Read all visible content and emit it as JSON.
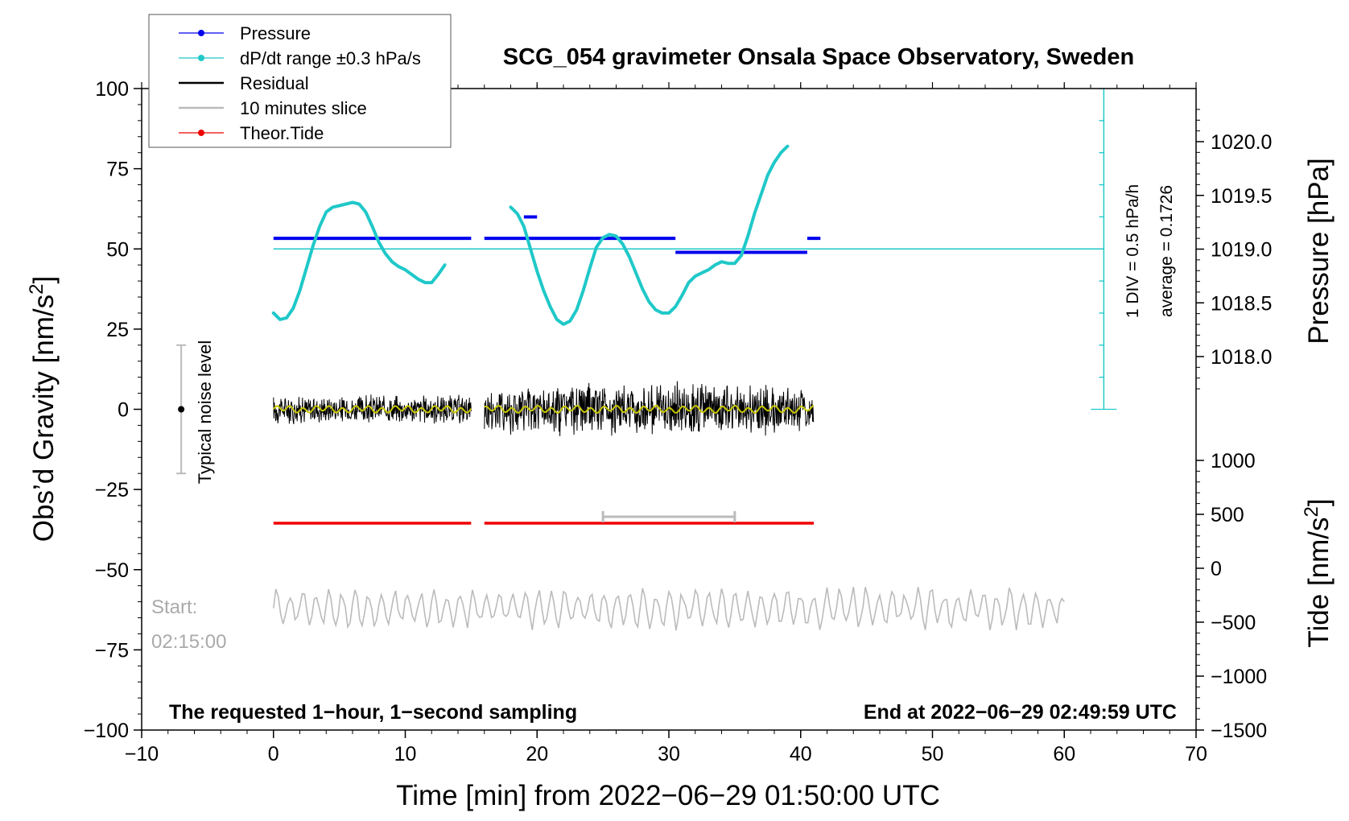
{
  "chart_data": {
    "type": "line",
    "title": "SCG_054 gravimeter Onsala Space Observatory, Sweden",
    "xlabel": "Time [min] from 2022−06−29 01:50:00 UTC",
    "ylabel_left": "Obs’d Gravity [nm/s",
    "ylabel_left_sup": "2",
    "ylabel_left_end": "]",
    "ylabel_right_pressure": "Pressure [hPa]",
    "ylabel_right_tide": "Tide [nm/s",
    "ylabel_right_tide_sup": "2",
    "ylabel_right_tide_end": "]",
    "xlim": [
      -10,
      70
    ],
    "ylim_left": [
      -100,
      100
    ],
    "x_ticks": [
      "−10",
      "0",
      "10",
      "20",
      "30",
      "40",
      "50",
      "60",
      "70"
    ],
    "x_tick_values": [
      -10,
      0,
      10,
      20,
      30,
      40,
      50,
      60,
      70
    ],
    "y_left_ticks": [
      "100",
      "75",
      "50",
      "25",
      "0",
      "−25",
      "−50",
      "−75",
      "−100"
    ],
    "y_left_tick_values": [
      100,
      75,
      50,
      25,
      0,
      -25,
      -50,
      -75,
      -100
    ],
    "pressure_axis": {
      "ticks": [
        "1020.0",
        "1019.5",
        "1019.0",
        "1018.5",
        "1018.0"
      ],
      "tick_values": [
        1020.0,
        1019.5,
        1019.0,
        1018.5,
        1018.0
      ],
      "range": [
        1017.5,
        1020.5
      ]
    },
    "tide_axis": {
      "ticks": [
        "1000",
        "500",
        "0",
        "−500",
        "−1000",
        "−1500"
      ],
      "tick_values": [
        1000,
        500,
        0,
        -500,
        -1000,
        -1500
      ],
      "range": [
        -1500,
        1000
      ]
    },
    "legend": {
      "position": "top-left",
      "entries": [
        {
          "label": "Pressure",
          "color": "#0000ee",
          "marker": true
        },
        {
          "label": "dP/dt range ±0.3 hPa/s",
          "color": "#20c8c8",
          "marker": true
        },
        {
          "label": "Residual",
          "color": "#000000",
          "marker": false
        },
        {
          "label": "10 minutes slice",
          "color": "#bbbbbb",
          "marker": false
        },
        {
          "label": "Theor.Tide",
          "color": "#ee0000",
          "marker": true
        }
      ]
    },
    "series": [
      {
        "name": "Pressure",
        "color": "#0000ee",
        "unit": "hPa",
        "segments": [
          {
            "x": [
              0,
              15
            ],
            "y": [
              1019.1,
              1019.1
            ]
          },
          {
            "x": [
              16,
              30.5
            ],
            "y": [
              1019.1,
              1019.1
            ]
          },
          {
            "x": [
              19,
              20
            ],
            "y": [
              1019.3,
              1019.3
            ]
          },
          {
            "x": [
              30.5,
              40.5
            ],
            "y": [
              1018.97,
              1018.97
            ]
          },
          {
            "x": [
              40.5,
              41.5
            ],
            "y": [
              1019.1,
              1019.1
            ]
          }
        ]
      },
      {
        "name": "dP/dt range ±0.3 hPa/s",
        "color": "#20c8c8",
        "unit": "nm/s2",
        "segments": [
          {
            "x": [
              0,
              0.5,
              1,
              1.5,
              2,
              2.5,
              3,
              3.5,
              4,
              4.5,
              5,
              5.5,
              6,
              6.5,
              7,
              7.5,
              8,
              8.5,
              9,
              9.5,
              10,
              10.5,
              11,
              11.5,
              12,
              12.5,
              13
            ],
            "y": [
              30,
              28,
              28.5,
              31.5,
              37,
              44,
              51,
              57,
              61.5,
              63,
              63.5,
              64,
              64.5,
              64,
              61.5,
              57,
              52,
              48.5,
              46,
              44.5,
              43.5,
              42,
              40.5,
              39.5,
              39.5,
              42,
              45
            ]
          },
          {
            "x": [
              18,
              18.5,
              19,
              19.5,
              20,
              20.5,
              21,
              21.5,
              22,
              22.5,
              23,
              23.5,
              24,
              24.5,
              25,
              25.5,
              26,
              26.5,
              27,
              27.5,
              28,
              28.5,
              29,
              29.5,
              30,
              30.5,
              31,
              31.5,
              32,
              32.5,
              33,
              33.5,
              34,
              34.5,
              35,
              35.5,
              36,
              36.5,
              37,
              37.5,
              38,
              38.5,
              39
            ],
            "y": [
              63,
              61,
              57,
              50,
              43,
              37,
              32,
              28,
              26.5,
              27.5,
              31,
              37,
              44,
              50.5,
              53.5,
              54.5,
              54,
              51.5,
              47.5,
              42.5,
              37.5,
              33.5,
              31,
              30,
              30,
              32,
              35.5,
              39.5,
              41.5,
              42.5,
              43.5,
              45,
              46,
              45.5,
              45.5,
              48,
              54,
              61,
              67,
              73,
              77,
              80,
              82
            ]
          }
        ]
      },
      {
        "name": "Residual",
        "color": "#000000",
        "unit": "nm/s2",
        "segments": [
          {
            "x": [
              0,
              15
            ],
            "y_range": [
              -5,
              5
            ]
          },
          {
            "x": [
              16,
              41
            ],
            "y_range": [
              -8,
              10
            ]
          }
        ]
      },
      {
        "name": "10 minutes slice",
        "color": "#bbbbbb",
        "unit": "nm/s2",
        "segments": [
          {
            "x": [
              0,
              60
            ],
            "y_center": -62,
            "y_range": [
              -69,
              -55
            ]
          }
        ]
      },
      {
        "name": "Theor.Tide",
        "color": "#ee0000",
        "unit": "nm/s2",
        "segments": [
          {
            "x": [
              0,
              15
            ],
            "y": [
              -35.5,
              -35.5
            ]
          },
          {
            "x": [
              16,
              41
            ],
            "y": [
              -35.5,
              -35.5
            ]
          }
        ]
      },
      {
        "name": "10 minutes slice marker",
        "color": "#bbbbbb",
        "unit": "nm/s2",
        "segments": [
          {
            "x": [
              25,
              35
            ],
            "y": [
              -33.5,
              -33.5
            ]
          }
        ]
      }
    ],
    "reference_line": {
      "x": [
        0,
        63
      ],
      "y": 50,
      "color": "#20c8c8"
    },
    "division_scale": {
      "x": 63,
      "y_top": 100,
      "y_bottom": 0,
      "step": 6,
      "label": "1 DIV = 0.5 hPa/h"
    },
    "noise_bar": {
      "x": -7,
      "y_low": -20,
      "y_high": 20,
      "label": "Typical noise level"
    },
    "annotations": {
      "average": "average = 0.1726",
      "start_label": "Start:",
      "start_time": "02:15:00",
      "footer_left": "The requested 1−hour, 1−second sampling",
      "footer_right": "End at 2022−06−29 02:49:59 UTC"
    }
  }
}
